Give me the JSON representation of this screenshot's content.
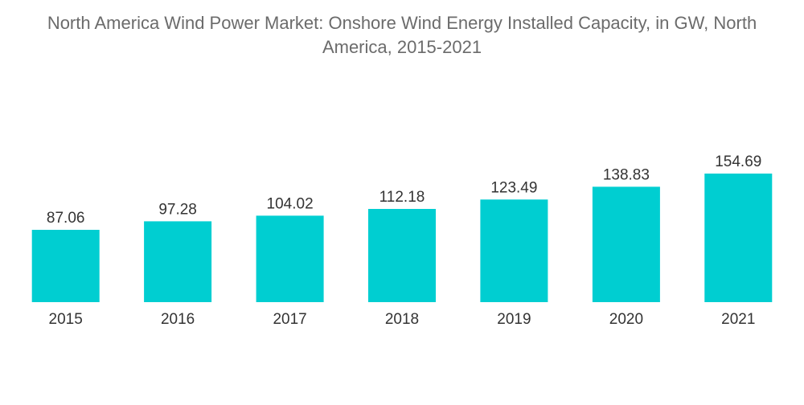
{
  "chart_data": {
    "type": "bar",
    "title_line1": "North America Wind Power Market: Onshore Wind Energy Installed Capacity, in GW, North",
    "title_line2": "America, 2015-2021",
    "xlabel": "",
    "ylabel": "",
    "categories": [
      "2015",
      "2016",
      "2017",
      "2018",
      "2019",
      "2020",
      "2021"
    ],
    "values": [
      87.06,
      97.28,
      104.02,
      112.18,
      123.49,
      138.83,
      154.69
    ],
    "value_labels": [
      "87.06",
      "97.28",
      "104.02",
      "112.18",
      "123.49",
      "138.83",
      "154.69"
    ],
    "ylim": [
      0,
      160
    ],
    "grid": false,
    "legend": "none",
    "bar_color": "#00CED1"
  }
}
